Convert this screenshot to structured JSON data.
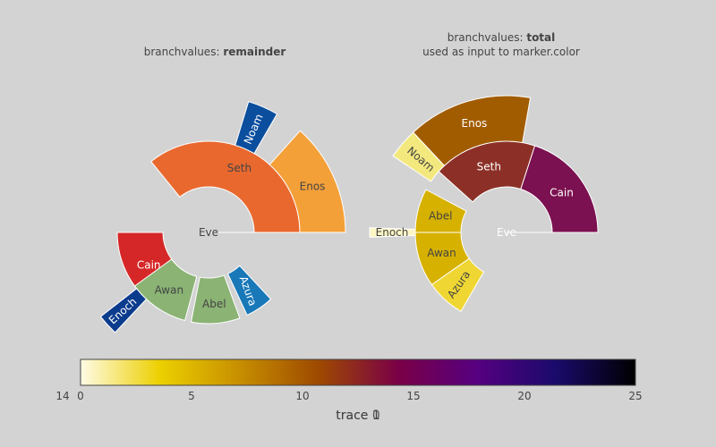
{
  "chart_data": [
    {
      "type": "sunburst",
      "title_prefix": "branchvalues: ",
      "title_bold": "remainder",
      "subtitle": "",
      "labels": [
        "Eve",
        "Cain",
        "Seth",
        "Enos",
        "Noam",
        "Abel",
        "Awan",
        "Enoch",
        "Azura"
      ],
      "parents": [
        "",
        "Eve",
        "Eve",
        "Seth",
        "Seth",
        "Eve",
        "Eve",
        "Awan",
        "Eve"
      ],
      "values": [
        10,
        14,
        12,
        10,
        2,
        6,
        6,
        1,
        4
      ],
      "colors": [
        "#f4a039",
        "#d62728",
        "#e9682e",
        "#f4a039",
        "#0b4e9e",
        "#8ab374",
        "#8ab374",
        "#0b3b8c",
        "#1878b8"
      ],
      "text_colors": [
        "#444444",
        "#ffffff",
        "#444444",
        "#444444",
        "#ffffff",
        "#444444",
        "#444444",
        "#ffffff",
        "#ffffff"
      ]
    },
    {
      "type": "sunburst",
      "title_prefix": "branchvalues: ",
      "title_bold": "total",
      "subtitle": "used as input to marker.color",
      "labels": [
        "Eve",
        "Cain",
        "Seth",
        "Enos",
        "Noam",
        "Abel",
        "Awan",
        "Enoch",
        "Azura"
      ],
      "parents": [
        "",
        "Eve",
        "Eve",
        "Seth",
        "Seth",
        "Eve",
        "Eve",
        "Awan",
        "Eve"
      ],
      "values": [
        65,
        14,
        12,
        10,
        2,
        6,
        6,
        1,
        4
      ],
      "colors": [
        "#000000",
        "#7b1150",
        "#8c3027",
        "#a25c00",
        "#f3e87e",
        "#d6b100",
        "#d6b100",
        "#fcf5c6",
        "#efd633"
      ],
      "text_colors": [
        "#ffffff",
        "#ffffff",
        "#ffffff",
        "#ffffff",
        "#444444",
        "#444444",
        "#444444",
        "#444444",
        "#444444"
      ]
    }
  ],
  "colorbar": {
    "title": "trace 1",
    "title_overlap": "trace 0",
    "range": [
      0,
      25
    ],
    "ticks": [
      "0",
      "5",
      "10",
      "15",
      "20",
      "25"
    ],
    "tick_values": [
      0,
      5,
      10,
      15,
      20,
      25
    ],
    "stray_tick": "14",
    "colorscale": [
      "#fffbe6",
      "#ecd000",
      "#c78f00",
      "#9e4a00",
      "#7a0046",
      "#560080",
      "#1a0a6b",
      "#000000"
    ]
  }
}
